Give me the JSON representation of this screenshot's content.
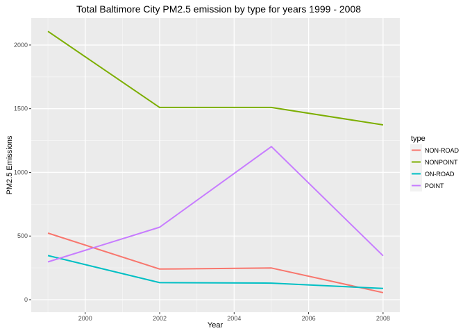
{
  "chart_data": {
    "type": "line",
    "title": "Total Baltimore City PM2.5 emission by type for years 1999 - 2008",
    "xlabel": "Year",
    "ylabel": "PM2.5 Emissions",
    "x": [
      1999,
      2002,
      2005,
      2008
    ],
    "xlim": [
      1998.55,
      2008.45
    ],
    "ylim": [
      -98,
      2212
    ],
    "x_ticks": [
      2000,
      2002,
      2004,
      2006,
      2008
    ],
    "y_ticks": [
      0,
      500,
      1000,
      1500,
      2000
    ],
    "x_tick_labels": [
      "2000",
      "2002",
      "2004",
      "2006",
      "2008"
    ],
    "y_tick_labels": [
      "0",
      "500",
      "1000",
      "1500",
      "2000"
    ],
    "grid": true,
    "legend_title": "type",
    "legend_position": "right",
    "series": [
      {
        "name": "NON-ROAD",
        "color": "#F8766D",
        "values": [
          522.94,
          240.85,
          248.93,
          55.82
        ]
      },
      {
        "name": "NONPOINT",
        "color": "#7CAE00",
        "values": [
          2107.63,
          1509.5,
          1509.5,
          1373.21
        ]
      },
      {
        "name": "ON-ROAD",
        "color": "#00BFC4",
        "values": [
          346.82,
          134.31,
          130.43,
          88.28
        ]
      },
      {
        "name": "POINT",
        "color": "#C77CFF",
        "values": [
          296.8,
          569.26,
          1202.49,
          344.98
        ]
      }
    ]
  }
}
